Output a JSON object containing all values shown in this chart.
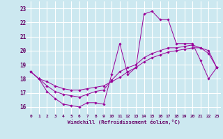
{
  "xlabel": "Windchill (Refroidissement éolien,°C)",
  "background_color": "#cce8f0",
  "grid_color": "#ffffff",
  "line_color": "#990099",
  "xlim": [
    -0.5,
    23.5
  ],
  "ylim": [
    15.5,
    23.5
  ],
  "yticks": [
    16,
    17,
    18,
    19,
    20,
    21,
    22,
    23
  ],
  "xticks": [
    0,
    1,
    2,
    3,
    4,
    5,
    6,
    7,
    8,
    9,
    10,
    11,
    12,
    13,
    14,
    15,
    16,
    17,
    18,
    19,
    20,
    21,
    22,
    23
  ],
  "series": [
    [
      18.5,
      18.0,
      17.1,
      16.6,
      16.2,
      16.1,
      16.0,
      16.3,
      16.3,
      16.2,
      18.3,
      20.5,
      18.3,
      18.8,
      22.6,
      22.8,
      22.2,
      22.2,
      20.5,
      20.5,
      20.5,
      19.3,
      18.0,
      18.8
    ],
    [
      18.5,
      18.0,
      17.8,
      17.5,
      17.3,
      17.2,
      17.2,
      17.3,
      17.4,
      17.5,
      17.8,
      18.1,
      18.5,
      18.8,
      19.2,
      19.5,
      19.7,
      19.9,
      20.0,
      20.1,
      20.2,
      20.2,
      20.0,
      18.8
    ],
    [
      18.5,
      18.0,
      17.5,
      17.1,
      16.9,
      16.8,
      16.7,
      16.9,
      17.1,
      17.2,
      17.9,
      18.5,
      18.8,
      19.0,
      19.5,
      19.8,
      20.0,
      20.2,
      20.2,
      20.3,
      20.4,
      20.2,
      19.8,
      18.8
    ]
  ]
}
